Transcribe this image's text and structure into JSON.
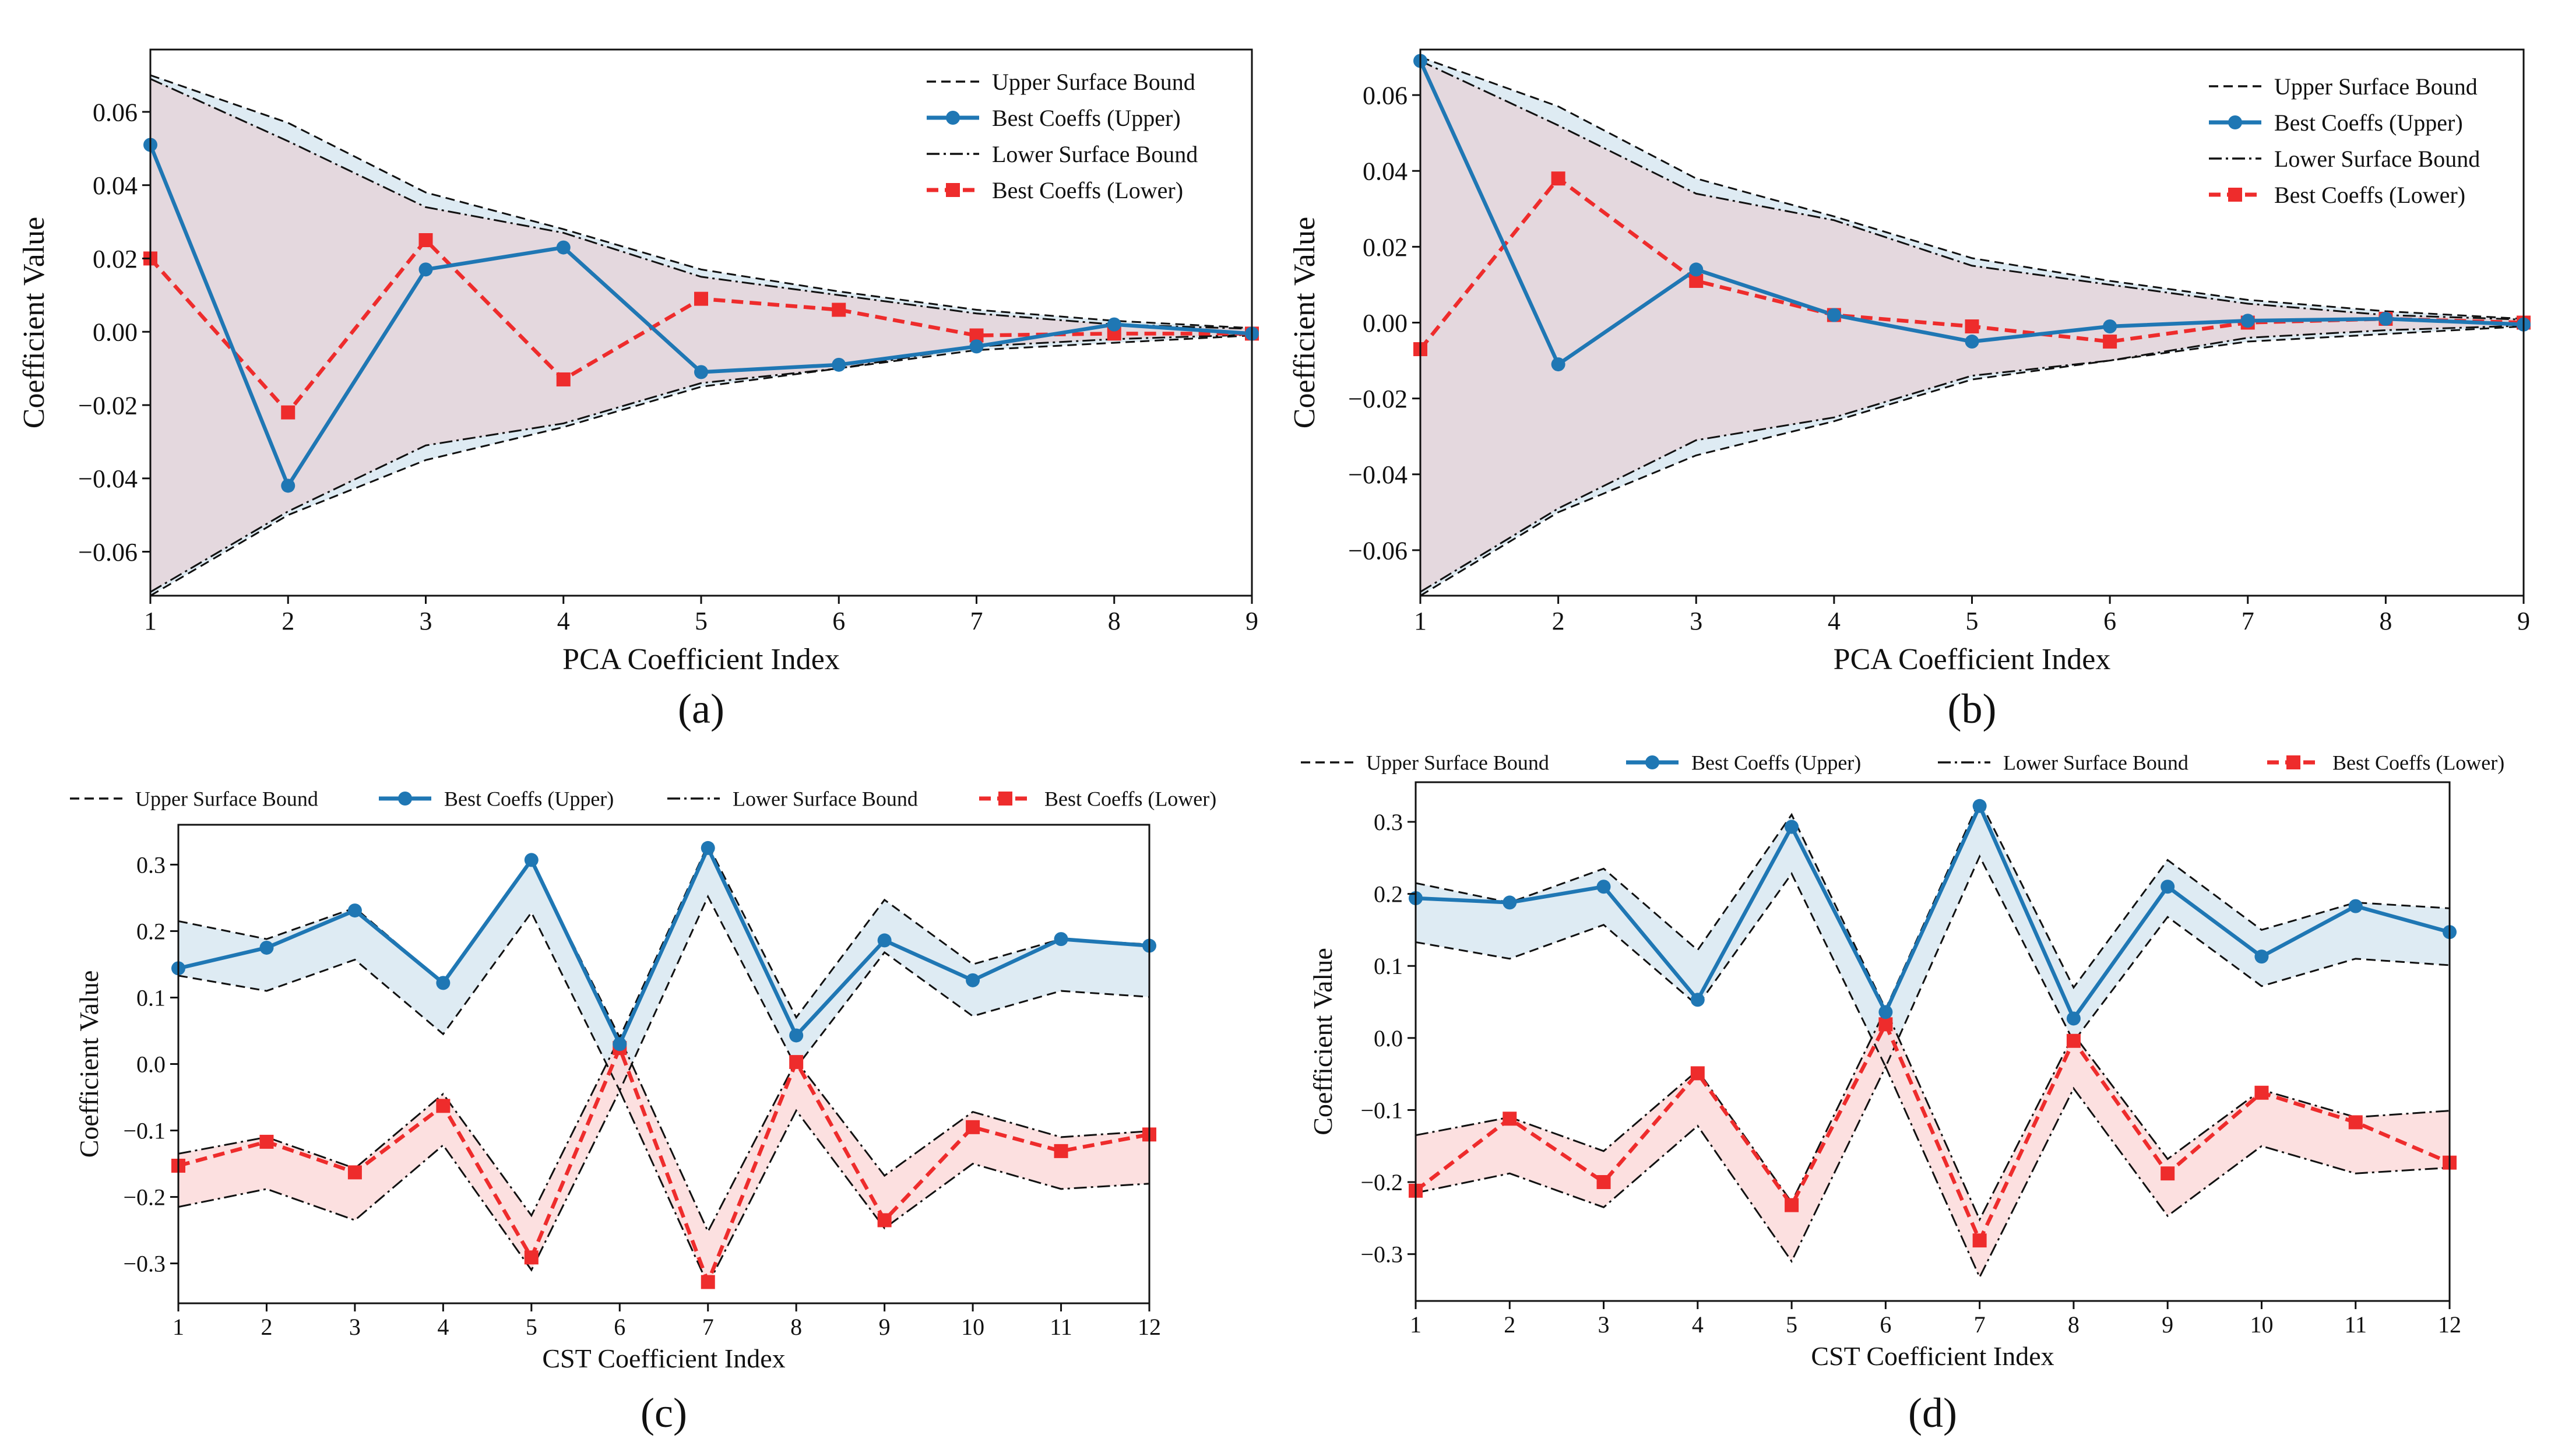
{
  "chart_data": [
    {
      "panel": "a",
      "caption": "(a)",
      "type": "line",
      "xlabel": "PCA Coefficient Index",
      "ylabel": "Coefficient Value",
      "xlim": [
        1,
        9
      ],
      "ylim": [
        -0.072,
        0.077
      ],
      "xticks": [
        1,
        2,
        3,
        4,
        5,
        6,
        7,
        8,
        9
      ],
      "yticks": [
        -0.06,
        -0.04,
        -0.02,
        0.0,
        0.02,
        0.04,
        0.06
      ],
      "ytick_labels": [
        "−0.06",
        "−0.04",
        "−0.02",
        "0.00",
        "0.02",
        "0.04",
        "0.06"
      ],
      "legend_position": "top-right",
      "legend_layout": "column",
      "x": [
        1,
        2,
        3,
        4,
        5,
        6,
        7,
        8,
        9
      ],
      "series": [
        {
          "key": "upper_bound",
          "name": "Upper Surface Bound",
          "style": "bound-dashed",
          "hi": [
            0.07,
            0.057,
            0.038,
            0.028,
            0.017,
            0.011,
            0.006,
            0.003,
            0.001
          ],
          "lo": [
            -0.072,
            -0.05,
            -0.035,
            -0.026,
            -0.015,
            -0.01,
            -0.005,
            -0.003,
            -0.001
          ]
        },
        {
          "key": "best_upper",
          "name": "Best Coeffs (Upper)",
          "style": "blue-circle",
          "values": [
            0.051,
            -0.042,
            0.017,
            0.023,
            -0.011,
            -0.009,
            -0.004,
            0.002,
            -0.0005
          ]
        },
        {
          "key": "lower_bound",
          "name": "Lower Surface Bound",
          "style": "bound-dashdot",
          "hi": [
            0.069,
            0.052,
            0.034,
            0.027,
            0.015,
            0.01,
            0.005,
            0.002,
            0.0008
          ],
          "lo": [
            -0.071,
            -0.049,
            -0.031,
            -0.025,
            -0.014,
            -0.01,
            -0.004,
            -0.002,
            -0.0008
          ]
        },
        {
          "key": "best_lower",
          "name": "Best Coeffs (Lower)",
          "style": "red-square",
          "values": [
            0.02,
            -0.022,
            0.025,
            -0.013,
            0.009,
            0.006,
            -0.001,
            -0.0005,
            -0.0005
          ]
        }
      ],
      "colors": {
        "upper_fill": "#d8e8f1",
        "lower_fill": "#f7dada",
        "overlap_fill": "#e4d8de",
        "blue": "#1f77b4",
        "red": "#ee2c2c",
        "bound": "#111111"
      }
    },
    {
      "panel": "b",
      "caption": "(b)",
      "type": "line",
      "xlabel": "PCA Coefficient Index",
      "ylabel": "Coefficient Value",
      "xlim": [
        1,
        9
      ],
      "ylim": [
        -0.072,
        0.072
      ],
      "xticks": [
        1,
        2,
        3,
        4,
        5,
        6,
        7,
        8,
        9
      ],
      "yticks": [
        -0.06,
        -0.04,
        -0.02,
        0.0,
        0.02,
        0.04,
        0.06
      ],
      "ytick_labels": [
        "−0.06",
        "−0.04",
        "−0.02",
        "0.00",
        "0.02",
        "0.04",
        "0.06"
      ],
      "legend_position": "top-right",
      "legend_layout": "column",
      "x": [
        1,
        2,
        3,
        4,
        5,
        6,
        7,
        8,
        9
      ],
      "series": [
        {
          "key": "upper_bound",
          "name": "Upper Surface Bound",
          "style": "bound-dashed",
          "hi": [
            0.07,
            0.057,
            0.038,
            0.028,
            0.017,
            0.011,
            0.006,
            0.003,
            0.001
          ],
          "lo": [
            -0.072,
            -0.05,
            -0.035,
            -0.026,
            -0.015,
            -0.01,
            -0.005,
            -0.003,
            -0.001
          ]
        },
        {
          "key": "best_upper",
          "name": "Best Coeffs (Upper)",
          "style": "blue-circle",
          "values": [
            0.069,
            -0.011,
            0.014,
            0.002,
            -0.005,
            -0.001,
            0.0005,
            0.001,
            -0.0005
          ]
        },
        {
          "key": "lower_bound",
          "name": "Lower Surface Bound",
          "style": "bound-dashdot",
          "hi": [
            0.069,
            0.052,
            0.034,
            0.027,
            0.015,
            0.01,
            0.005,
            0.002,
            0.0008
          ],
          "lo": [
            -0.071,
            -0.049,
            -0.031,
            -0.025,
            -0.014,
            -0.01,
            -0.004,
            -0.002,
            -0.0008
          ]
        },
        {
          "key": "best_lower",
          "name": "Best Coeffs (Lower)",
          "style": "red-square",
          "values": [
            -0.007,
            0.038,
            0.011,
            0.002,
            -0.001,
            -0.005,
            0.0,
            0.001,
            0.0
          ]
        }
      ],
      "colors": {
        "upper_fill": "#d8e8f1",
        "lower_fill": "#f7dada",
        "overlap_fill": "#e4d8de",
        "blue": "#1f77b4",
        "red": "#ee2c2c",
        "bound": "#111111"
      }
    },
    {
      "panel": "c",
      "caption": "(c)",
      "type": "line",
      "xlabel": "CST Coefficient Index",
      "ylabel": "Coefficient Value",
      "xlim": [
        1,
        12
      ],
      "ylim": [
        -0.36,
        0.36
      ],
      "xticks": [
        1,
        2,
        3,
        4,
        5,
        6,
        7,
        8,
        9,
        10,
        11,
        12
      ],
      "yticks": [
        -0.3,
        -0.2,
        -0.1,
        0.0,
        0.1,
        0.2,
        0.3
      ],
      "ytick_labels": [
        "−0.3",
        "−0.2",
        "−0.1",
        "0.0",
        "0.1",
        "0.2",
        "0.3"
      ],
      "legend_position": "top-outside",
      "legend_layout": "row",
      "x": [
        1,
        2,
        3,
        4,
        5,
        6,
        7,
        8,
        9,
        10,
        11,
        12
      ],
      "series": [
        {
          "key": "upper_bound",
          "name": "Upper Surface Bound",
          "style": "bound-dashed",
          "hi": [
            0.215,
            0.188,
            0.235,
            0.122,
            0.305,
            0.04,
            0.33,
            0.07,
            0.247,
            0.15,
            0.188,
            0.18
          ],
          "lo": [
            0.133,
            0.11,
            0.157,
            0.045,
            0.228,
            -0.04,
            0.252,
            -0.005,
            0.168,
            0.072,
            0.11,
            0.101
          ]
        },
        {
          "key": "best_upper",
          "name": "Best Coeffs (Upper)",
          "style": "blue-circle",
          "values": [
            0.144,
            0.175,
            0.231,
            0.122,
            0.307,
            0.03,
            0.325,
            0.043,
            0.186,
            0.126,
            0.188,
            0.178
          ]
        },
        {
          "key": "lower_bound",
          "name": "Lower Surface Bound",
          "style": "bound-dashdot",
          "hi": [
            -0.135,
            -0.11,
            -0.157,
            -0.045,
            -0.228,
            0.04,
            -0.252,
            0.005,
            -0.168,
            -0.072,
            -0.11,
            -0.101
          ],
          "lo": [
            -0.215,
            -0.188,
            -0.235,
            -0.122,
            -0.31,
            -0.04,
            -0.332,
            -0.07,
            -0.247,
            -0.15,
            -0.188,
            -0.18
          ]
        },
        {
          "key": "best_lower",
          "name": "Best Coeffs (Lower)",
          "style": "red-square",
          "values": [
            -0.153,
            -0.117,
            -0.163,
            -0.063,
            -0.291,
            0.024,
            -0.328,
            0.003,
            -0.235,
            -0.095,
            -0.131,
            -0.106
          ]
        }
      ],
      "colors": {
        "upper_fill": "#d8e8f1",
        "lower_fill": "#fbdada",
        "overlap_fill": "#e4d8de",
        "blue": "#1f77b4",
        "red": "#ee2c2c",
        "bound": "#111111"
      }
    },
    {
      "panel": "d",
      "caption": "(d)",
      "type": "line",
      "xlabel": "CST Coefficient Index",
      "ylabel": "Coefficient Value",
      "xlim": [
        1,
        12
      ],
      "ylim": [
        -0.365,
        0.355
      ],
      "xticks": [
        1,
        2,
        3,
        4,
        5,
        6,
        7,
        8,
        9,
        10,
        11,
        12
      ],
      "yticks": [
        -0.3,
        -0.2,
        -0.1,
        0.0,
        0.1,
        0.2,
        0.3
      ],
      "ytick_labels": [
        "−0.3",
        "−0.2",
        "−0.1",
        "0.0",
        "0.1",
        "0.2",
        "0.3"
      ],
      "legend_position": "top-outside",
      "legend_layout": "row",
      "x": [
        1,
        2,
        3,
        4,
        5,
        6,
        7,
        8,
        9,
        10,
        11,
        12
      ],
      "series": [
        {
          "key": "upper_bound",
          "name": "Upper Surface Bound",
          "style": "bound-dashed",
          "hi": [
            0.215,
            0.188,
            0.235,
            0.122,
            0.31,
            0.04,
            0.33,
            0.07,
            0.247,
            0.15,
            0.188,
            0.18
          ],
          "lo": [
            0.133,
            0.11,
            0.157,
            0.045,
            0.228,
            -0.04,
            0.252,
            -0.005,
            0.168,
            0.072,
            0.11,
            0.101
          ]
        },
        {
          "key": "best_upper",
          "name": "Best Coeffs (Upper)",
          "style": "blue-circle",
          "values": [
            0.194,
            0.188,
            0.21,
            0.053,
            0.293,
            0.036,
            0.322,
            0.027,
            0.21,
            0.113,
            0.183,
            0.147
          ]
        },
        {
          "key": "lower_bound",
          "name": "Lower Surface Bound",
          "style": "bound-dashdot",
          "hi": [
            -0.135,
            -0.11,
            -0.157,
            -0.045,
            -0.228,
            0.04,
            -0.252,
            0.005,
            -0.168,
            -0.072,
            -0.11,
            -0.101
          ],
          "lo": [
            -0.215,
            -0.188,
            -0.235,
            -0.122,
            -0.31,
            -0.04,
            -0.332,
            -0.07,
            -0.247,
            -0.15,
            -0.188,
            -0.18
          ]
        },
        {
          "key": "best_lower",
          "name": "Best Coeffs (Lower)",
          "style": "red-square",
          "values": [
            -0.212,
            -0.112,
            -0.2,
            -0.049,
            -0.232,
            0.019,
            -0.281,
            -0.004,
            -0.188,
            -0.076,
            -0.117,
            -0.173
          ]
        }
      ],
      "colors": {
        "upper_fill": "#d8e8f1",
        "lower_fill": "#fbdada",
        "overlap_fill": "#e4d8de",
        "blue": "#1f77b4",
        "red": "#ee2c2c",
        "bound": "#111111"
      }
    }
  ]
}
